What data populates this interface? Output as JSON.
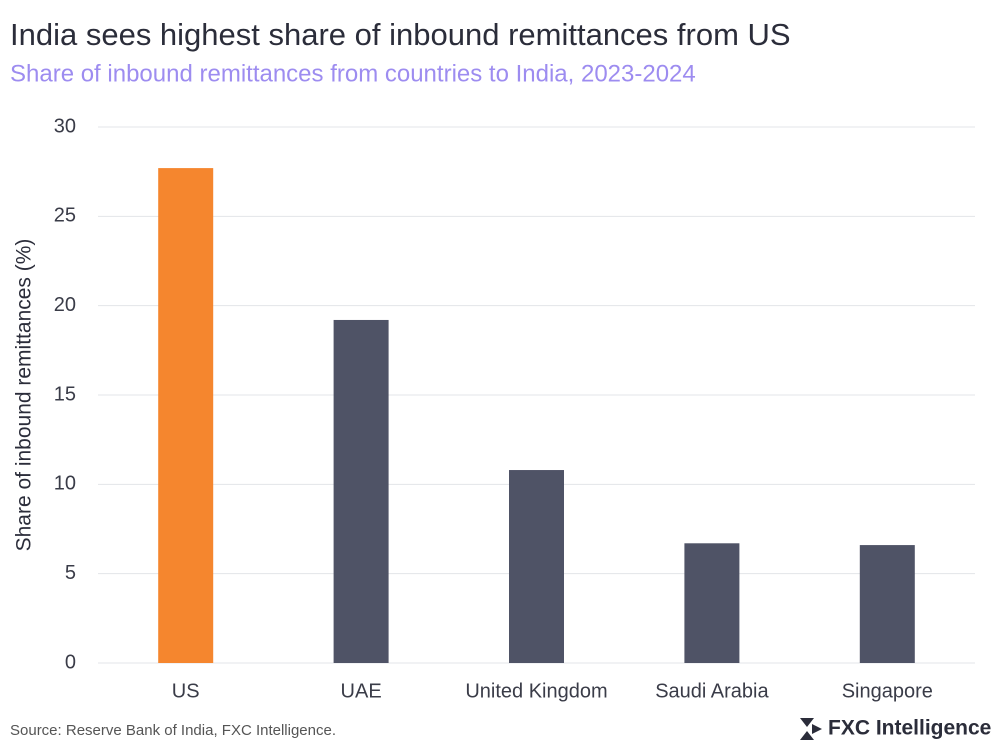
{
  "chart_data": {
    "type": "bar",
    "title": "India sees highest share of inbound remittances from US",
    "subtitle": "Share of inbound remittances from countries to India, 2023-2024",
    "y_label": "Share of inbound remittances (%)",
    "categories": [
      "US",
      "UAE",
      "United Kingdom",
      "Saudi Arabia",
      "Singapore"
    ],
    "values": [
      27.7,
      19.2,
      10.8,
      6.7,
      6.6
    ],
    "colors": [
      "#f5862e",
      "#4f5366",
      "#4f5366",
      "#4f5366",
      "#4f5366"
    ],
    "ylim": [
      0,
      30
    ],
    "yticks": [
      0,
      5,
      10,
      15,
      20,
      25,
      30
    ],
    "grid": true,
    "source": "Source: Reserve Bank of India, FXC Intelligence.",
    "brand": "FXC Intelligence"
  }
}
